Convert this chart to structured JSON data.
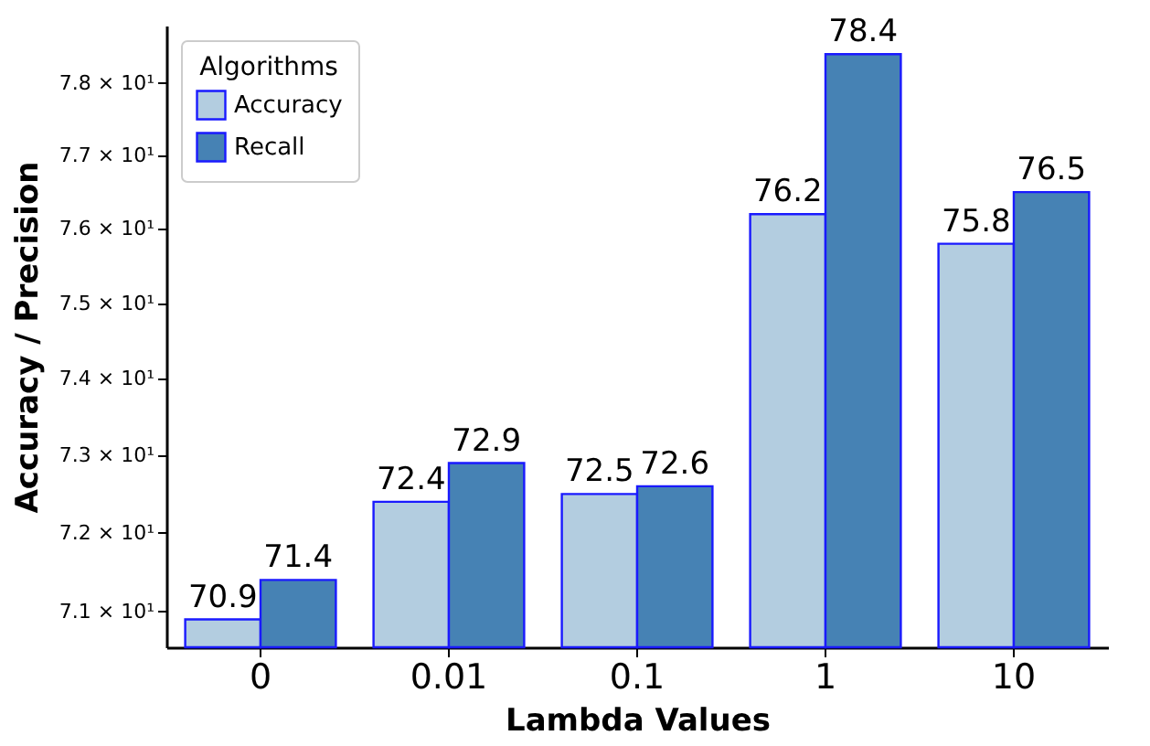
{
  "chart_data": {
    "type": "bar",
    "xlabel": "Lambda Values",
    "ylabel": "Accuracy / Precision",
    "legend_title": "Algorithms",
    "categories": [
      "0",
      "0.01",
      "0.1",
      "1",
      "10"
    ],
    "series": [
      {
        "name": "Accuracy",
        "color": "#b3cde0",
        "values": [
          70.9,
          72.4,
          72.5,
          76.2,
          75.8
        ]
      },
      {
        "name": "Recall",
        "color": "#4682b4",
        "values": [
          71.4,
          72.9,
          72.6,
          78.4,
          76.5
        ]
      }
    ],
    "log": "y",
    "ylim": [
      70.55,
      78.8
    ],
    "yticks": [
      {
        "value": 71,
        "label": "7.1 × 10¹"
      },
      {
        "value": 72,
        "label": "7.2 × 10¹"
      },
      {
        "value": 73,
        "label": "7.3 × 10¹"
      },
      {
        "value": 74,
        "label": "7.4 × 10¹"
      },
      {
        "value": 75,
        "label": "7.5 × 10¹"
      },
      {
        "value": 76,
        "label": "7.6 × 10¹"
      },
      {
        "value": 77,
        "label": "7.7 × 10¹"
      },
      {
        "value": 78,
        "label": "7.8 × 10¹"
      }
    ],
    "data_labels": true,
    "legend": "top left",
    "grid": false
  }
}
